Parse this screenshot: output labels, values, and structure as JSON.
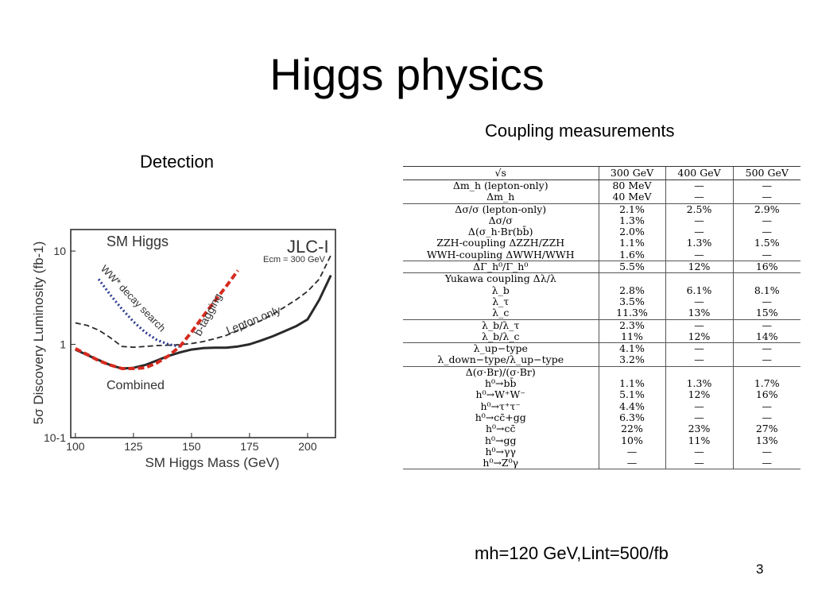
{
  "slide": {
    "title": "Higgs physics",
    "coupling_label": "Coupling measurements",
    "detection_label": "Detection",
    "params": "mh=120 GeV,Lint=500/fb",
    "page_number": "3"
  },
  "chart_data": {
    "type": "line",
    "title": "SM Higgs",
    "experiment": "JLC-I",
    "energy_note": "Ecm = 300 GeV",
    "xlabel": "SM Higgs Mass (GeV)",
    "ylabel": "5σ Discovery Luminosity (fb-1)",
    "y_scale": "log",
    "xlim": [
      98,
      212
    ],
    "ylim": [
      0.1,
      17
    ],
    "x_ticks": [
      "100",
      "125",
      "150",
      "175",
      "200"
    ],
    "y_ticks": [
      "10",
      "1",
      "10-1"
    ],
    "series": [
      {
        "name": "Combined",
        "style": "solid",
        "color": "#2a2a2a",
        "x": [
          100,
          105,
          110,
          115,
          120,
          125,
          130,
          135,
          140,
          145,
          150,
          155,
          160,
          165,
          170,
          175,
          180,
          185,
          190,
          195,
          200,
          205,
          210
        ],
        "y": [
          0.88,
          0.77,
          0.68,
          0.6,
          0.55,
          0.56,
          0.6,
          0.67,
          0.75,
          0.82,
          0.88,
          0.91,
          0.92,
          0.92,
          0.95,
          1.0,
          1.1,
          1.22,
          1.38,
          1.56,
          1.85,
          3.0,
          5.5
        ]
      },
      {
        "name": "Lepton only",
        "style": "dashed",
        "color": "#2a2a2a",
        "x": [
          100,
          105,
          110,
          115,
          120,
          125,
          130,
          135,
          140,
          145,
          150,
          155,
          160,
          165,
          170,
          175,
          180,
          185,
          190,
          195,
          200,
          205,
          210
        ],
        "y": [
          1.7,
          1.6,
          1.42,
          1.18,
          0.95,
          0.93,
          0.95,
          0.97,
          0.98,
          0.99,
          1.02,
          1.07,
          1.15,
          1.25,
          1.4,
          1.58,
          1.8,
          2.1,
          2.5,
          3.0,
          3.7,
          5.0,
          9.0
        ]
      },
      {
        "name": "WW* decay search",
        "style": "dotted",
        "color": "#2b3a8f",
        "x": [
          110,
          115,
          120,
          125,
          130,
          135,
          140,
          145
        ],
        "y": [
          5.0,
          3.4,
          2.4,
          1.75,
          1.35,
          1.12,
          1.0,
          0.95
        ]
      },
      {
        "name": "b-tagging",
        "style": "dashed",
        "color": "#d62a1e",
        "x": [
          100,
          105,
          110,
          115,
          120,
          125,
          130,
          135,
          140,
          145,
          150,
          155,
          160,
          165,
          170
        ],
        "y": [
          0.9,
          0.78,
          0.67,
          0.6,
          0.55,
          0.55,
          0.56,
          0.63,
          0.75,
          0.95,
          1.35,
          2.0,
          2.9,
          4.2,
          6.2
        ]
      }
    ]
  },
  "table": {
    "header": [
      "√s",
      "300 GeV",
      "400 GeV",
      "500 GeV"
    ],
    "groups": [
      [
        [
          "Δm_h (lepton-only)",
          "80 MeV",
          "—",
          "—"
        ],
        [
          "Δm_h",
          "40 MeV",
          "—",
          "—"
        ]
      ],
      [
        [
          "Δσ/σ (lepton-only)",
          "2.1%",
          "2.5%",
          "2.9%"
        ],
        [
          "Δσ/σ",
          "1.3%",
          "—",
          "—"
        ],
        [
          "Δ(σ_h·Br(bb̄)",
          "2.0%",
          "—",
          "—"
        ],
        [
          "ZZH-coupling ΔZZH/ZZH",
          "1.1%",
          "1.3%",
          "1.5%"
        ],
        [
          "WWH-coupling ΔWWH/WWH",
          "1.6%",
          "—",
          "—"
        ]
      ],
      [
        [
          "ΔΓ_h⁰/Γ_h⁰",
          "5.5%",
          "12%",
          "16%"
        ]
      ],
      [
        [
          "Yukawa coupling Δλ/λ",
          "",
          "",
          ""
        ],
        [
          "λ_b",
          "2.8%",
          "6.1%",
          "8.1%"
        ],
        [
          "λ_τ",
          "3.5%",
          "—",
          "—"
        ],
        [
          "λ_c",
          "11.3%",
          "13%",
          "15%"
        ]
      ],
      [
        [
          "λ_b/λ_τ",
          "2.3%",
          "—",
          "—"
        ],
        [
          "λ_b/λ_c",
          "11%",
          "12%",
          "14%"
        ]
      ],
      [
        [
          "λ_up−type",
          "4.1%",
          "—",
          "—"
        ],
        [
          "λ_down−type/λ_up−type",
          "3.2%",
          "—",
          "—"
        ]
      ],
      [
        [
          "Δ(σ·Br)/(σ·Br)",
          "",
          "",
          ""
        ],
        [
          "h⁰→bb̄",
          "1.1%",
          "1.3%",
          "1.7%"
        ],
        [
          "h⁰→W⁺W⁻",
          "5.1%",
          "12%",
          "16%"
        ],
        [
          "h⁰→τ⁺τ⁻",
          "4.4%",
          "—",
          "—"
        ],
        [
          "h⁰→cc̄+gg",
          "6.3%",
          "—",
          "—"
        ],
        [
          "h⁰→cc̄",
          "22%",
          "23%",
          "27%"
        ],
        [
          "h⁰→gg",
          "10%",
          "11%",
          "13%"
        ],
        [
          "h⁰→γγ",
          "—",
          "—",
          "—"
        ],
        [
          "h⁰→Z⁰γ",
          "—",
          "—",
          "—"
        ]
      ]
    ]
  }
}
